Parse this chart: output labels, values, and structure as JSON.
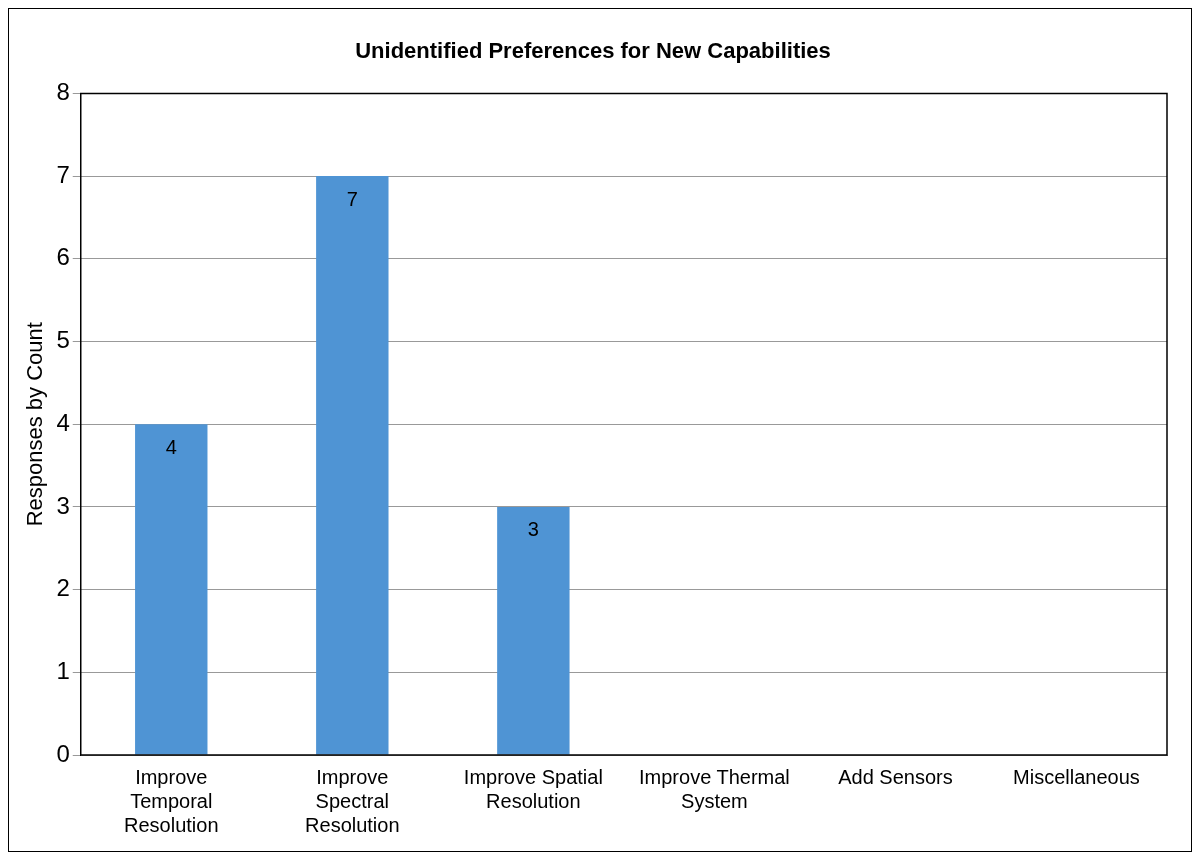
{
  "chart_data": {
    "type": "bar",
    "title": "Unidentified Preferences for New Capabilities",
    "ylabel": "Responses by Count",
    "categories": [
      "Improve Temporal Resolution",
      "Improve Spectral Resolution",
      "Improve Spatial Resolution",
      "Improve Thermal System",
      "Add Sensors",
      "Miscellaneous"
    ],
    "values": [
      4,
      7,
      3,
      0,
      0,
      0
    ],
    "value_labels": [
      "4",
      "7",
      "3",
      null,
      null,
      null
    ],
    "color": "#4f94d4",
    "ylim": [
      0,
      8
    ],
    "yticks": [
      0,
      1,
      2,
      3,
      4,
      5,
      6,
      7,
      8
    ],
    "grid": "y",
    "legend": false
  }
}
